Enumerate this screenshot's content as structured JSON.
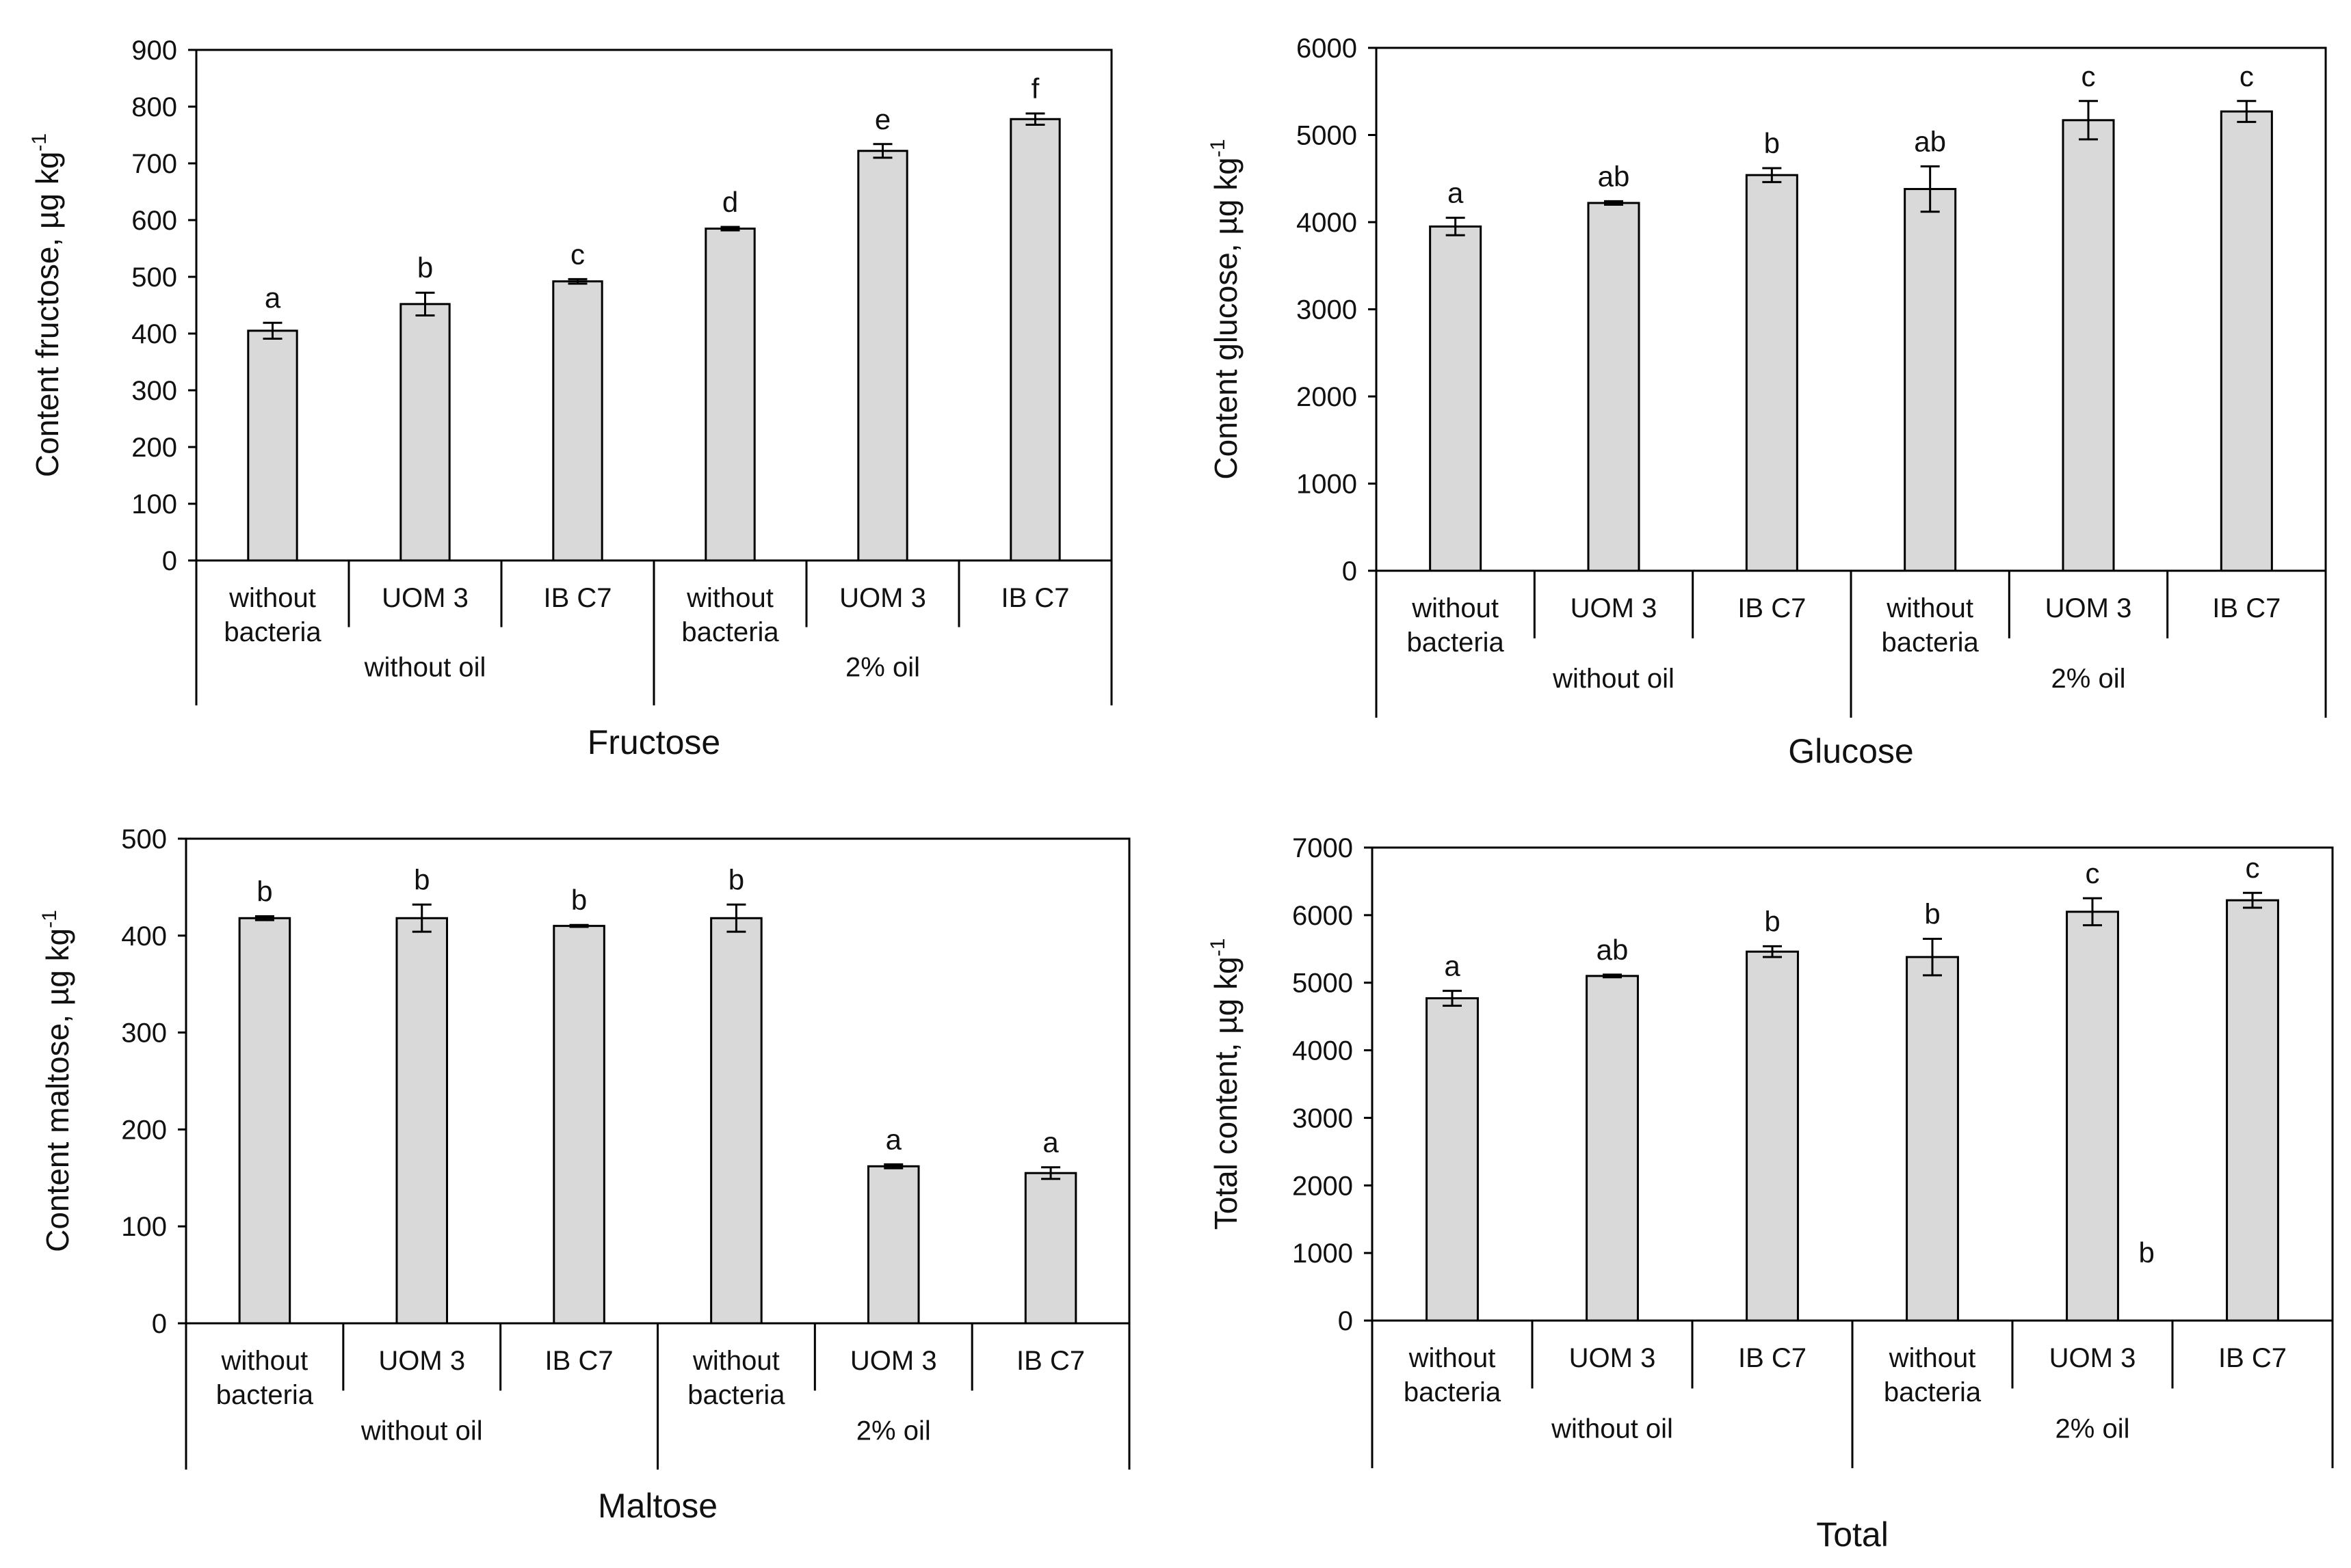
{
  "colors": {
    "bar_fill": "#d9d9d9",
    "bar_stroke": "#000000",
    "axis": "#000000",
    "text": "#111111"
  },
  "chart_data": [
    {
      "type": "bar",
      "title": "Fructose",
      "ylabel": "Content  fructose, µg  kg",
      "ylabel_superscript": "-1",
      "ylim": [
        0,
        900
      ],
      "yticks": [
        "0",
        "100",
        "200",
        "300",
        "400",
        "500",
        "600",
        "700",
        "800",
        "900"
      ],
      "categories": [
        "without bacteria",
        "UOM 3",
        "IB C7",
        "without bacteria",
        "UOM 3",
        "IB C7"
      ],
      "groups": [
        {
          "label": "without oil",
          "span": 3
        },
        {
          "label": "2% oil",
          "span": 3
        }
      ],
      "values": [
        405,
        452,
        492,
        585,
        722,
        778
      ],
      "errors": [
        14,
        20,
        4,
        3,
        12,
        10
      ],
      "letters": [
        "a",
        "b",
        "c",
        "d",
        "e",
        "f"
      ]
    },
    {
      "type": "bar",
      "title": "Glucose",
      "ylabel": "Content  glucose, µg  kg",
      "ylabel_superscript": "-1",
      "ylim": [
        0,
        6000
      ],
      "yticks": [
        "0",
        "1000",
        "2000",
        "3000",
        "4000",
        "5000",
        "6000"
      ],
      "categories": [
        "without bacteria",
        "UOM 3",
        "IB C7",
        "without bacteria",
        "UOM 3",
        "IB C7"
      ],
      "groups": [
        {
          "label": "without oil",
          "span": 3
        },
        {
          "label": "2% oil",
          "span": 3
        }
      ],
      "values": [
        3950,
        4220,
        4540,
        4380,
        5170,
        5270
      ],
      "errors": [
        100,
        20,
        80,
        260,
        220,
        120
      ],
      "letters": [
        "a",
        "ab",
        "b",
        "ab",
        "c",
        "c"
      ]
    },
    {
      "type": "bar",
      "title": "Maltose",
      "ylabel": "Content  maltose, µg  kg",
      "ylabel_superscript": "-1",
      "ylim": [
        0,
        500
      ],
      "yticks": [
        "0",
        "100",
        "200",
        "300",
        "400",
        "500"
      ],
      "categories": [
        "without bacteria",
        "UOM 3",
        "IB C7",
        "without bacteria",
        "UOM 3",
        "IB C7"
      ],
      "groups": [
        {
          "label": "without oil",
          "span": 3
        },
        {
          "label": "2% oil",
          "span": 3
        }
      ],
      "values": [
        418,
        418,
        410,
        418,
        162,
        155
      ],
      "errors": [
        2,
        14,
        1,
        14,
        2,
        6
      ],
      "letters": [
        "b",
        "b",
        "b",
        "b",
        "a",
        "a"
      ]
    },
    {
      "type": "bar",
      "title": "Total",
      "ylabel": "Total content, µg  kg",
      "ylabel_superscript": "-1",
      "ylim": [
        0,
        7000
      ],
      "yticks": [
        "0",
        "1000",
        "2000",
        "3000",
        "4000",
        "5000",
        "6000",
        "7000"
      ],
      "categories": [
        "without bacteria",
        "UOM 3",
        "IB C7",
        "without bacteria",
        "UOM 3",
        "IB C7"
      ],
      "groups": [
        {
          "label": "without oil",
          "span": 3
        },
        {
          "label": "2% oil",
          "span": 3
        }
      ],
      "values": [
        4770,
        5100,
        5460,
        5380,
        6050,
        6220
      ],
      "errors": [
        110,
        20,
        80,
        270,
        200,
        110
      ],
      "letters": [
        "a",
        "ab",
        "b",
        "b",
        "c",
        "c"
      ],
      "annotations": [
        {
          "text": "b",
          "category_index": 4,
          "y": 1000
        }
      ]
    }
  ]
}
